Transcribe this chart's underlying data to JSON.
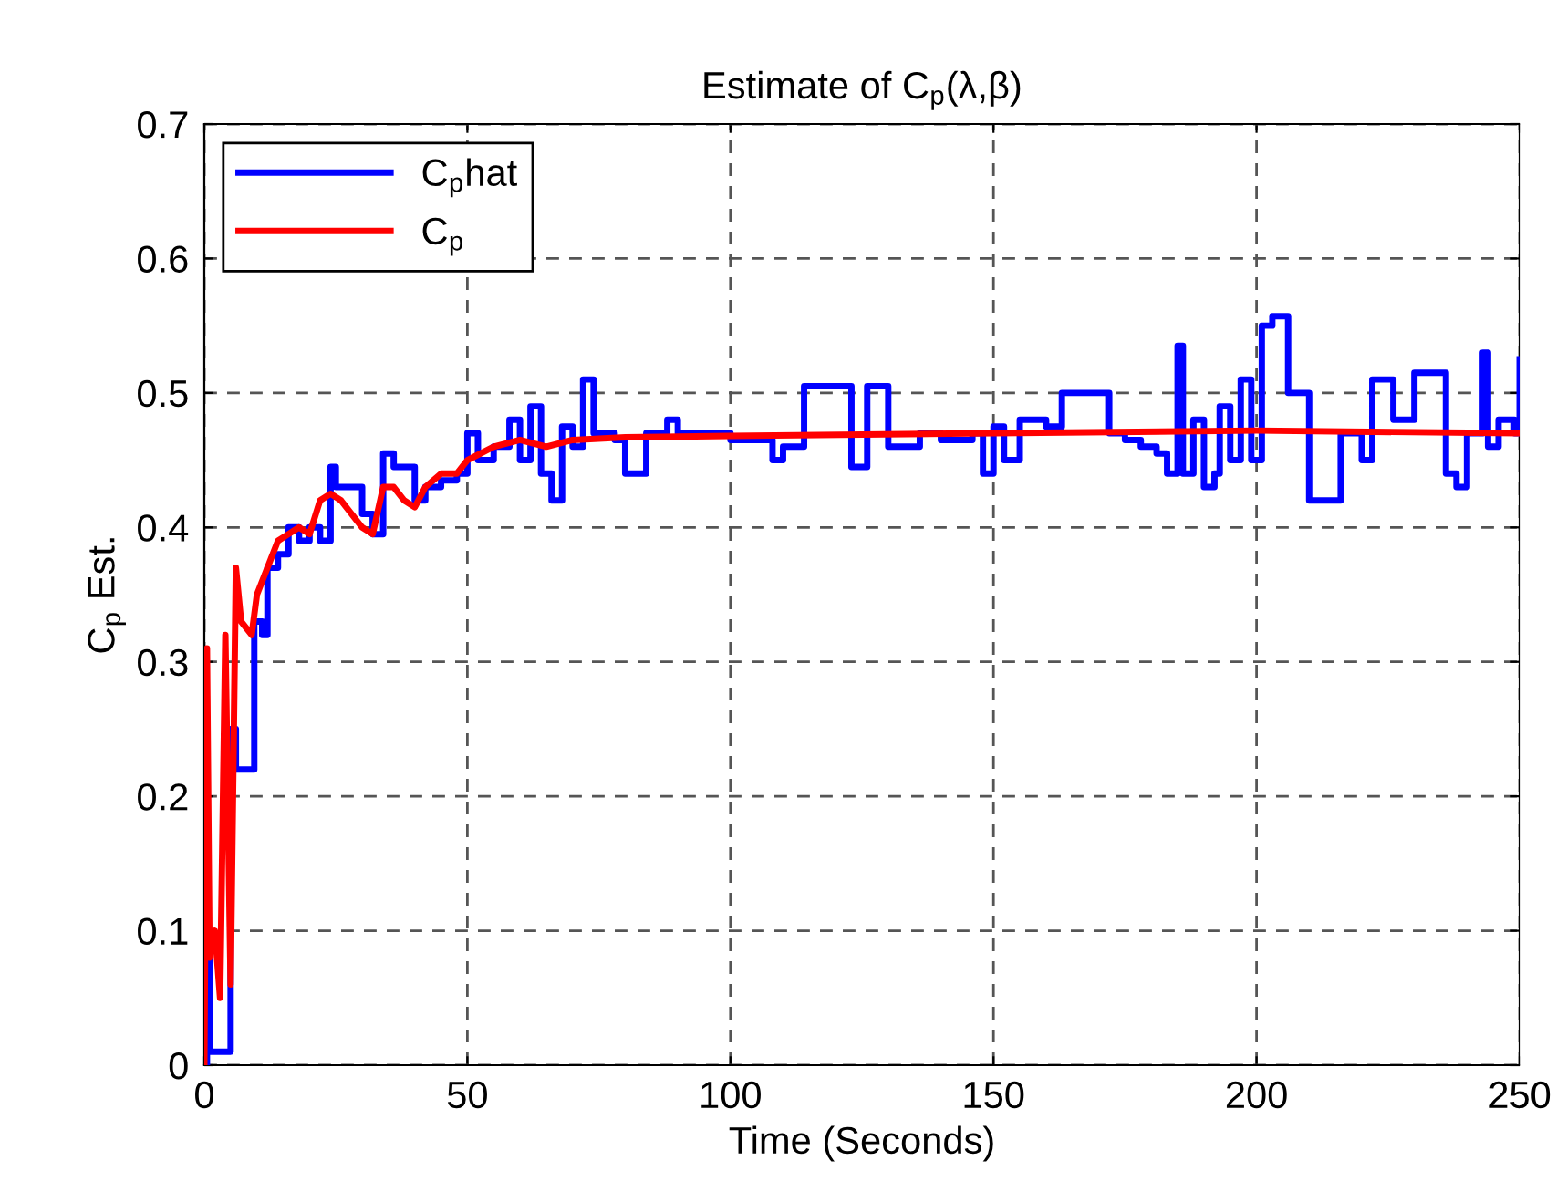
{
  "chart_data": {
    "type": "line",
    "title": "Estimate of C$_{p}$(λ,β)",
    "xlabel": "Time (Seconds)",
    "ylabel": "C$_{p}$ Est.",
    "xlim": [
      0,
      250
    ],
    "xticks": [
      0,
      50,
      100,
      150,
      200,
      250
    ],
    "ylim": [
      0,
      0.7
    ],
    "yticks": [
      0,
      0.1,
      0.2,
      0.3,
      0.4,
      0.5,
      0.6,
      0.7
    ],
    "grid": true,
    "legend": "top left",
    "line_style": "solid",
    "marker": "none",
    "series": [
      {
        "name": "C$_{p}$hat",
        "type": "step",
        "color": "#0000ff",
        "x": [
          0,
          0.5,
          1,
          3,
          5,
          6,
          9,
          9.5,
          11,
          12,
          14,
          16,
          18,
          20,
          22,
          24,
          25,
          28,
          30,
          32,
          34,
          36,
          40,
          42,
          45,
          48,
          50,
          52,
          55,
          58,
          60,
          62,
          64,
          66,
          68,
          70,
          72,
          74,
          78,
          80,
          84,
          88,
          90,
          100,
          108,
          110,
          114,
          123,
          126,
          130,
          136,
          140,
          146,
          148,
          150,
          152,
          155,
          160,
          163,
          172,
          175,
          178,
          181,
          183,
          185,
          186,
          188,
          190,
          192,
          193,
          195,
          197,
          199,
          201,
          203,
          206,
          210,
          216,
          220,
          222,
          226,
          230,
          236,
          238,
          240,
          243,
          244,
          246,
          249,
          250
        ],
        "values": [
          0.0,
          0.1,
          0.01,
          0.01,
          0.25,
          0.22,
          0.22,
          0.33,
          0.32,
          0.37,
          0.38,
          0.4,
          0.39,
          0.4,
          0.39,
          0.445,
          0.43,
          0.43,
          0.41,
          0.395,
          0.455,
          0.445,
          0.42,
          0.43,
          0.435,
          0.44,
          0.47,
          0.45,
          0.46,
          0.48,
          0.45,
          0.49,
          0.44,
          0.42,
          0.475,
          0.46,
          0.51,
          0.47,
          0.465,
          0.44,
          0.47,
          0.48,
          0.47,
          0.465,
          0.45,
          0.46,
          0.505,
          0.445,
          0.505,
          0.46,
          0.47,
          0.465,
          0.47,
          0.44,
          0.475,
          0.45,
          0.48,
          0.475,
          0.5,
          0.47,
          0.465,
          0.46,
          0.455,
          0.44,
          0.535,
          0.44,
          0.48,
          0.43,
          0.44,
          0.49,
          0.45,
          0.51,
          0.45,
          0.55,
          0.557,
          0.5,
          0.42,
          0.47,
          0.45,
          0.51,
          0.48,
          0.515,
          0.44,
          0.43,
          0.47,
          0.53,
          0.46,
          0.48,
          0.47,
          0.525
        ]
      },
      {
        "name": "C$_{p}$",
        "color": "#ff0000",
        "x": [
          0,
          0.5,
          1,
          2,
          3,
          4,
          5,
          6,
          7,
          9,
          10,
          12,
          14,
          16,
          18,
          20,
          22,
          24,
          26,
          28,
          30,
          32,
          34,
          36,
          38,
          40,
          42,
          45,
          48,
          50,
          55,
          60,
          65,
          70,
          80,
          100,
          150,
          200,
          250
        ],
        "values": [
          0.0,
          0.31,
          0.08,
          0.1,
          0.05,
          0.32,
          0.06,
          0.37,
          0.33,
          0.32,
          0.35,
          0.37,
          0.39,
          0.395,
          0.4,
          0.395,
          0.42,
          0.425,
          0.42,
          0.41,
          0.4,
          0.395,
          0.43,
          0.43,
          0.42,
          0.415,
          0.43,
          0.44,
          0.44,
          0.45,
          0.46,
          0.465,
          0.46,
          0.465,
          0.467,
          0.468,
          0.47,
          0.472,
          0.47
        ]
      }
    ]
  }
}
